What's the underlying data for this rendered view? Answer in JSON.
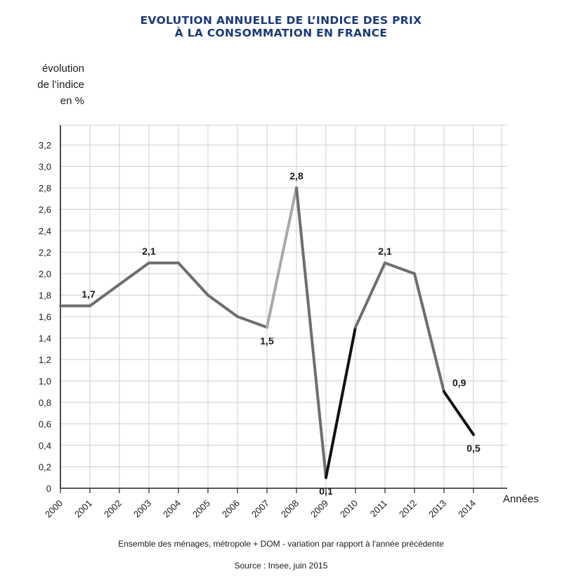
{
  "chart_data": {
    "type": "line",
    "title_lines": [
      "EVOLUTION ANNUELLE DE L’INDICE DES PRIX",
      "À LA CONSOMMATION EN FRANCE"
    ],
    "ylabel_lines": [
      "évolution",
      "de l’indice",
      "en %"
    ],
    "xlabel": "Années",
    "x": [
      "2000",
      "2001",
      "2002",
      "2003",
      "2004",
      "2005",
      "2006",
      "2007",
      "2008",
      "2009",
      "2010",
      "2011",
      "2012",
      "2013",
      "2014"
    ],
    "values": [
      1.7,
      1.7,
      1.9,
      2.1,
      2.1,
      1.8,
      1.6,
      1.5,
      2.8,
      0.1,
      1.5,
      2.1,
      2.0,
      0.9,
      0.5
    ],
    "yticks": [
      "0",
      "0,2",
      "0,4",
      "0,6",
      "0,8",
      "1,0",
      "1,2",
      "1,4",
      "1,6",
      "1,8",
      "2,0",
      "2,2",
      "2,4",
      "2,6",
      "2,8",
      "3,0",
      "3,2"
    ],
    "ylim": [
      0,
      3.3
    ],
    "grid": true,
    "annotations": [
      {
        "x": "2001",
        "label": "1,7",
        "position": "above"
      },
      {
        "x": "2003",
        "label": "2,1",
        "position": "above"
      },
      {
        "x": "2007",
        "label": "1,5",
        "position": "below"
      },
      {
        "x": "2008",
        "label": "2,8",
        "position": "above"
      },
      {
        "x": "2009",
        "label": "0,1",
        "position": "below"
      },
      {
        "x": "2011",
        "label": "2,1",
        "position": "above"
      },
      {
        "x": "2013",
        "label": "0,9",
        "position": "above-right"
      },
      {
        "x": "2014",
        "label": "0,5",
        "position": "below"
      }
    ],
    "colors": {
      "title": "#1b3a7a",
      "grid": "#cfcfcf",
      "axis": "#222222",
      "line_light": "#a8a8a8",
      "line_mid": "#6e6e6e",
      "line_dark": "#111111"
    }
  },
  "footer": {
    "note": "Ensemble des ménages, métropole + DOM - variation par rapport à l'année précédente",
    "source": "Source : Insee, juin 2015"
  }
}
